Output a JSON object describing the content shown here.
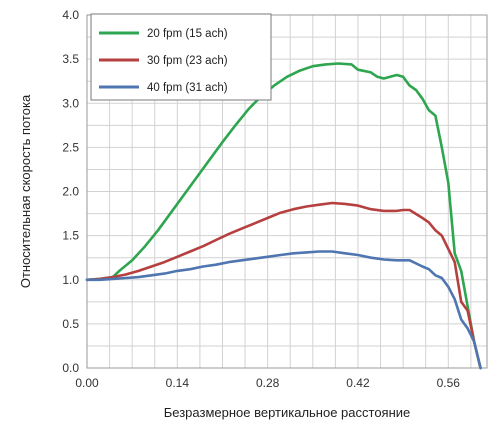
{
  "chart_data": {
    "type": "line",
    "xlabel": "Безразмерное вертикальное расстояние",
    "ylabel": "Относительная скорость потока",
    "xlim": [
      0,
      0.62
    ],
    "ylim": [
      0,
      4.0
    ],
    "x_ticks": [
      0.0,
      0.14,
      0.28,
      0.42,
      0.56
    ],
    "x_tick_labels": [
      "0.00",
      "0.14",
      "0.28",
      "0.42",
      "0.56"
    ],
    "y_ticks": [
      0.0,
      0.5,
      1.0,
      1.5,
      2.0,
      2.5,
      3.0,
      3.5,
      4.0
    ],
    "y_tick_labels": [
      "0.0",
      "0.5",
      "1.0",
      "1.5",
      "2.0",
      "2.5",
      "3.0",
      "3.5",
      "4.0"
    ],
    "grid": true,
    "legend_position": "top-left",
    "series": [
      {
        "name": "20 fpm (15 ach)",
        "color": "#2ea54f",
        "x": [
          0.0,
          0.02,
          0.04,
          0.05,
          0.07,
          0.09,
          0.11,
          0.13,
          0.15,
          0.17,
          0.19,
          0.21,
          0.23,
          0.25,
          0.27,
          0.29,
          0.31,
          0.33,
          0.35,
          0.37,
          0.39,
          0.41,
          0.42,
          0.44,
          0.45,
          0.46,
          0.47,
          0.48,
          0.49,
          0.5,
          0.51,
          0.52,
          0.53,
          0.54,
          0.55,
          0.56,
          0.57,
          0.58,
          0.59,
          0.6,
          0.61
        ],
        "y": [
          1.0,
          1.01,
          1.03,
          1.1,
          1.22,
          1.38,
          1.56,
          1.76,
          1.96,
          2.16,
          2.36,
          2.56,
          2.75,
          2.93,
          3.08,
          3.2,
          3.3,
          3.37,
          3.42,
          3.44,
          3.45,
          3.44,
          3.38,
          3.35,
          3.3,
          3.28,
          3.3,
          3.32,
          3.3,
          3.2,
          3.15,
          3.05,
          2.92,
          2.86,
          2.5,
          2.1,
          1.3,
          1.1,
          0.7,
          0.3,
          0.0
        ]
      },
      {
        "name": "30 fpm (23 ach)",
        "color": "#b5403f",
        "x": [
          0.0,
          0.02,
          0.04,
          0.06,
          0.08,
          0.1,
          0.12,
          0.14,
          0.16,
          0.18,
          0.2,
          0.22,
          0.24,
          0.26,
          0.28,
          0.3,
          0.32,
          0.34,
          0.36,
          0.38,
          0.4,
          0.42,
          0.44,
          0.46,
          0.48,
          0.49,
          0.5,
          0.52,
          0.53,
          0.54,
          0.55,
          0.56,
          0.57,
          0.58,
          0.59,
          0.6,
          0.61
        ],
        "y": [
          1.0,
          1.01,
          1.03,
          1.06,
          1.1,
          1.15,
          1.2,
          1.26,
          1.32,
          1.38,
          1.45,
          1.52,
          1.58,
          1.64,
          1.7,
          1.76,
          1.8,
          1.83,
          1.85,
          1.87,
          1.86,
          1.84,
          1.8,
          1.78,
          1.78,
          1.79,
          1.79,
          1.7,
          1.65,
          1.56,
          1.5,
          1.35,
          1.2,
          0.75,
          0.65,
          0.3,
          0.0
        ]
      },
      {
        "name": "40 fpm (31 ach)",
        "color": "#4f76b0",
        "x": [
          0.0,
          0.02,
          0.04,
          0.06,
          0.08,
          0.1,
          0.12,
          0.14,
          0.16,
          0.18,
          0.2,
          0.22,
          0.24,
          0.26,
          0.28,
          0.3,
          0.32,
          0.34,
          0.36,
          0.38,
          0.4,
          0.42,
          0.44,
          0.46,
          0.48,
          0.49,
          0.5,
          0.52,
          0.53,
          0.54,
          0.55,
          0.56,
          0.57,
          0.58,
          0.59,
          0.6,
          0.61
        ],
        "y": [
          1.0,
          1.0,
          1.01,
          1.02,
          1.03,
          1.05,
          1.07,
          1.1,
          1.12,
          1.15,
          1.17,
          1.2,
          1.22,
          1.24,
          1.26,
          1.28,
          1.3,
          1.31,
          1.32,
          1.32,
          1.3,
          1.28,
          1.25,
          1.23,
          1.22,
          1.22,
          1.22,
          1.15,
          1.12,
          1.05,
          1.02,
          0.92,
          0.78,
          0.55,
          0.45,
          0.3,
          0.0
        ]
      }
    ]
  }
}
